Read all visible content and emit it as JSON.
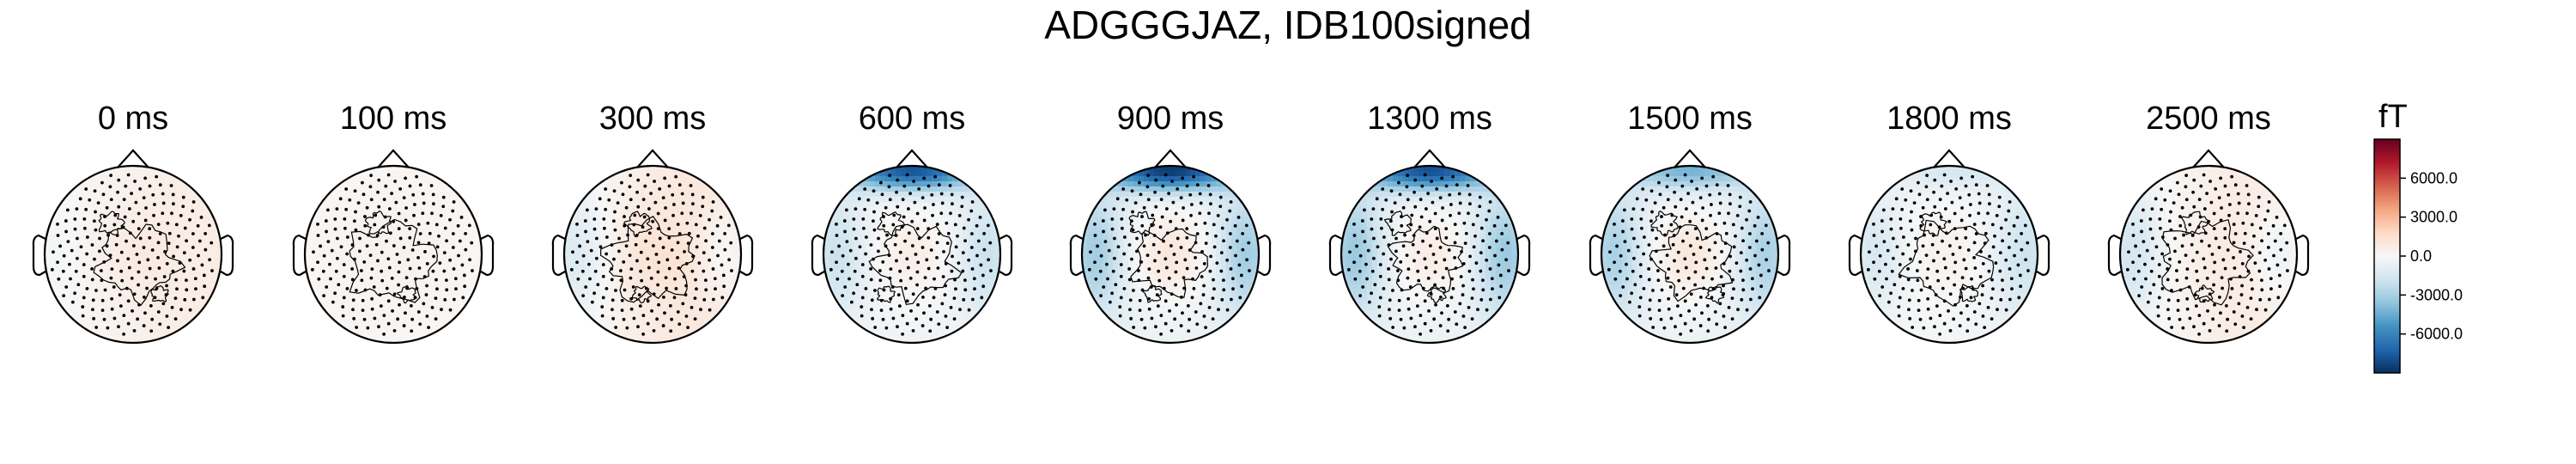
{
  "chart_data": {
    "type": "heatmap",
    "title": "ADGGGJAZ, IDB100signed",
    "panels": [
      {
        "label": "0 ms",
        "time_ms": 0,
        "field": {
          "base": 400,
          "frontal": 0,
          "sides": -150,
          "center": 400,
          "shift": 900
        }
      },
      {
        "label": "100 ms",
        "time_ms": 100,
        "field": {
          "base": 150,
          "frontal": 0,
          "sides": 0,
          "center": 200,
          "shift": 0
        }
      },
      {
        "label": "300 ms",
        "time_ms": 300,
        "field": {
          "base": 700,
          "frontal": 0,
          "sides": -1300,
          "center": 600,
          "shift": 1500
        }
      },
      {
        "label": "600 ms",
        "time_ms": 600,
        "field": {
          "base": -300,
          "frontal": -7500,
          "sides": -1700,
          "center": 900,
          "shift": 0
        }
      },
      {
        "label": "900 ms",
        "time_ms": 900,
        "field": {
          "base": -500,
          "frontal": -8200,
          "sides": -2700,
          "center": 1500,
          "shift": 0
        }
      },
      {
        "label": "1300 ms",
        "time_ms": 1300,
        "field": {
          "base": -500,
          "frontal": -7500,
          "sides": -2900,
          "center": 1200,
          "shift": 0
        }
      },
      {
        "label": "1500 ms",
        "time_ms": 1500,
        "field": {
          "base": -500,
          "frontal": -3800,
          "sides": -2500,
          "center": 1500,
          "shift": 0
        }
      },
      {
        "label": "1800 ms",
        "time_ms": 1800,
        "field": {
          "base": -200,
          "frontal": -1300,
          "sides": -1500,
          "center": 600,
          "shift": -500
        }
      },
      {
        "label": "2500 ms",
        "time_ms": 2500,
        "field": {
          "base": 500,
          "frontal": 0,
          "sides": -1500,
          "center": 200,
          "shift": 1500
        }
      }
    ],
    "colorbar": {
      "unit": "fT",
      "vmin": -9000,
      "vmax": 9000,
      "ticks": [
        6000,
        3000,
        0,
        -3000,
        -6000
      ],
      "tick_labels": [
        "6000.0",
        "3000.0",
        "0.0",
        "-3000.0",
        "-6000.0"
      ],
      "colormap": "RdBu_r",
      "stops": [
        "#053061",
        "#2166ac",
        "#4393c3",
        "#92c5de",
        "#d1e5f0",
        "#f7f7f7",
        "#fddbc7",
        "#f4a582",
        "#d6604d",
        "#b2182b",
        "#67001f"
      ]
    },
    "sensor_layout": {
      "count": 230,
      "marker": "dot"
    },
    "contour_color": "#000000",
    "head_outline_color": "#000000"
  }
}
